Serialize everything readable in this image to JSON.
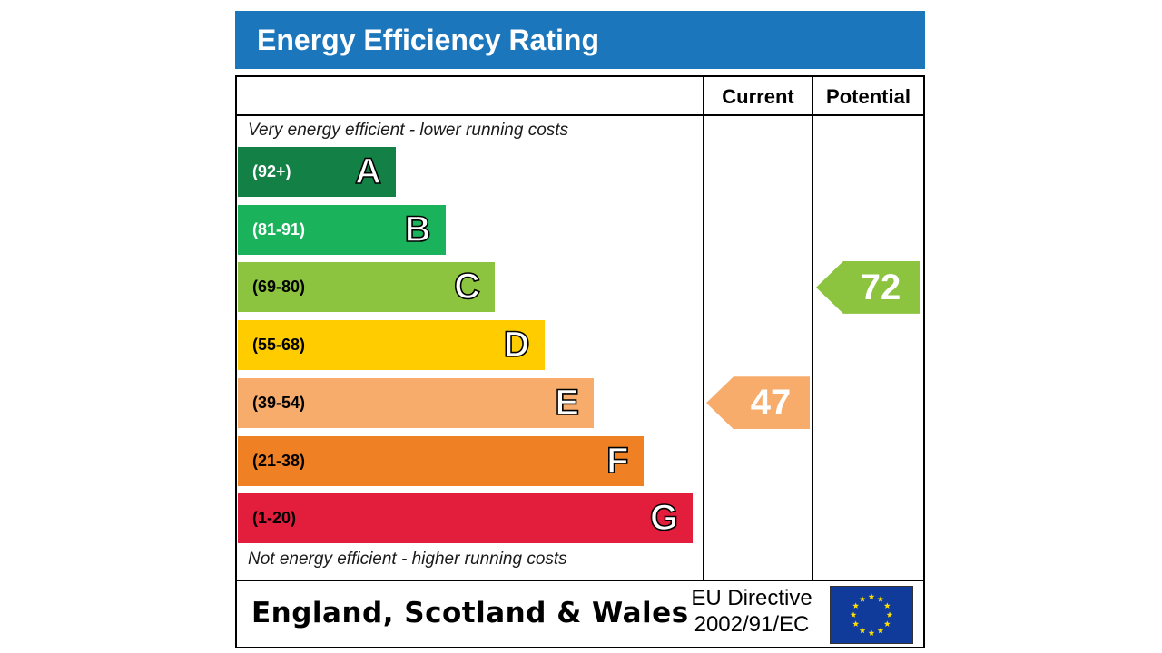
{
  "title": "Energy Efficiency Rating",
  "columns": {
    "current": "Current",
    "potential": "Potential"
  },
  "top_caption": "Very energy efficient - lower running costs",
  "bottom_caption": "Not energy efficient - higher running costs",
  "region": "England, Scotland & Wales",
  "directive": {
    "line1": "EU Directive",
    "line2": "2002/91/EC"
  },
  "colors": {
    "title_bar": "#1b76bc",
    "eu_flag": "#103b9b",
    "eu_stars": "#ffe000"
  },
  "chart_data": {
    "type": "bar",
    "categories": [
      "A",
      "B",
      "C",
      "D",
      "E",
      "F",
      "G"
    ],
    "bands": [
      {
        "letter": "A",
        "range": "(92+)",
        "min": 92,
        "max": 100,
        "color": "#138046",
        "range_color": "#ffffff"
      },
      {
        "letter": "B",
        "range": "(81-91)",
        "min": 81,
        "max": 91,
        "color": "#1bb25c",
        "range_color": "#ffffff"
      },
      {
        "letter": "C",
        "range": "(69-80)",
        "min": 69,
        "max": 80,
        "color": "#8cc43f",
        "range_color": "#000000"
      },
      {
        "letter": "D",
        "range": "(55-68)",
        "min": 55,
        "max": 68,
        "color": "#ffcc00",
        "range_color": "#000000"
      },
      {
        "letter": "E",
        "range": "(39-54)",
        "min": 39,
        "max": 54,
        "color": "#f7ac6b",
        "range_color": "#000000"
      },
      {
        "letter": "F",
        "range": "(21-38)",
        "min": 21,
        "max": 38,
        "color": "#ef8023",
        "range_color": "#000000"
      },
      {
        "letter": "G",
        "range": "(1-20)",
        "min": 1,
        "max": 20,
        "color": "#e31d3c",
        "range_color": "#000000"
      }
    ],
    "current": {
      "value": 47,
      "band": "E",
      "color": "#f7ac6b"
    },
    "potential": {
      "value": 72,
      "band": "C",
      "color": "#8cc43f"
    }
  }
}
